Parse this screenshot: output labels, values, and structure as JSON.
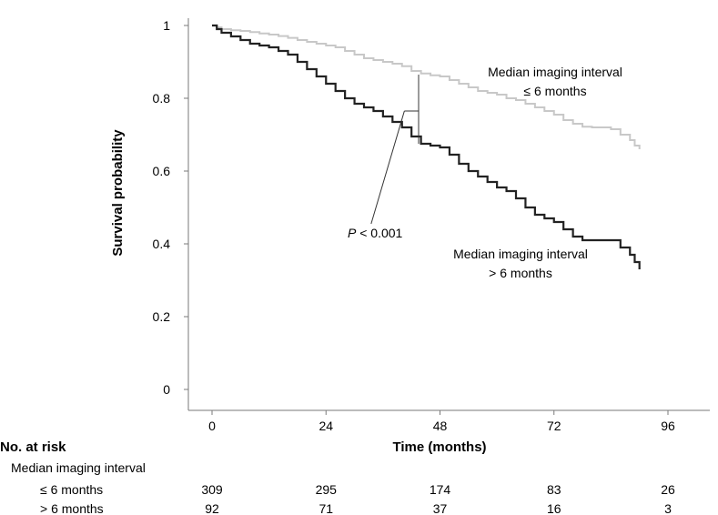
{
  "chart_data": {
    "type": "line",
    "subtype": "kaplan-meier",
    "title": "",
    "xlabel": "Time (months)",
    "ylabel": "Survival probability",
    "xlim": [
      -4,
      105
    ],
    "ylim": [
      0,
      1
    ],
    "x_ticks": [
      0,
      24,
      48,
      72,
      96
    ],
    "y_ticks": [
      0,
      0.2,
      0.4,
      0.6,
      0.8,
      1
    ],
    "y_tick_labels": [
      "0",
      "0.2",
      "0.4",
      "0.6",
      "0.8",
      "1"
    ],
    "grid": false,
    "series": [
      {
        "name": "Median imaging interval ≤ 6 months",
        "label_lines": [
          "Median imaging interval",
          "≤ 6 months"
        ],
        "color": "#c8c8c8",
        "steps": [
          [
            0,
            1.0
          ],
          [
            1,
            0.995
          ],
          [
            2,
            0.99
          ],
          [
            4,
            0.987
          ],
          [
            6,
            0.985
          ],
          [
            8,
            0.982
          ],
          [
            10,
            0.978
          ],
          [
            12,
            0.975
          ],
          [
            14,
            0.971
          ],
          [
            16,
            0.966
          ],
          [
            18,
            0.96
          ],
          [
            20,
            0.955
          ],
          [
            22,
            0.95
          ],
          [
            24,
            0.945
          ],
          [
            26,
            0.94
          ],
          [
            28,
            0.93
          ],
          [
            30,
            0.92
          ],
          [
            32,
            0.91
          ],
          [
            34,
            0.905
          ],
          [
            36,
            0.9
          ],
          [
            38,
            0.895
          ],
          [
            40,
            0.888
          ],
          [
            42,
            0.875
          ],
          [
            44,
            0.868
          ],
          [
            46,
            0.863
          ],
          [
            48,
            0.86
          ],
          [
            50,
            0.85
          ],
          [
            52,
            0.84
          ],
          [
            54,
            0.83
          ],
          [
            56,
            0.82
          ],
          [
            58,
            0.815
          ],
          [
            60,
            0.81
          ],
          [
            62,
            0.8
          ],
          [
            64,
            0.795
          ],
          [
            66,
            0.785
          ],
          [
            68,
            0.775
          ],
          [
            70,
            0.765
          ],
          [
            72,
            0.755
          ],
          [
            74,
            0.74
          ],
          [
            76,
            0.73
          ],
          [
            78,
            0.722
          ],
          [
            80,
            0.72
          ],
          [
            82,
            0.72
          ],
          [
            84,
            0.715
          ],
          [
            86,
            0.7
          ],
          [
            88,
            0.685
          ],
          [
            89,
            0.67
          ],
          [
            90,
            0.66
          ]
        ]
      },
      {
        "name": "Median imaging interval > 6 months",
        "label_lines": [
          "Median imaging interval",
          "> 6 months"
        ],
        "color": "#222222",
        "steps": [
          [
            0,
            1.0
          ],
          [
            1,
            0.99
          ],
          [
            2,
            0.98
          ],
          [
            4,
            0.97
          ],
          [
            6,
            0.96
          ],
          [
            8,
            0.95
          ],
          [
            10,
            0.945
          ],
          [
            12,
            0.94
          ],
          [
            14,
            0.93
          ],
          [
            16,
            0.92
          ],
          [
            18,
            0.9
          ],
          [
            20,
            0.88
          ],
          [
            22,
            0.86
          ],
          [
            24,
            0.84
          ],
          [
            26,
            0.82
          ],
          [
            28,
            0.8
          ],
          [
            30,
            0.785
          ],
          [
            32,
            0.775
          ],
          [
            34,
            0.765
          ],
          [
            36,
            0.75
          ],
          [
            38,
            0.735
          ],
          [
            40,
            0.72
          ],
          [
            42,
            0.695
          ],
          [
            44,
            0.675
          ],
          [
            46,
            0.67
          ],
          [
            48,
            0.665
          ],
          [
            50,
            0.645
          ],
          [
            52,
            0.62
          ],
          [
            54,
            0.6
          ],
          [
            56,
            0.585
          ],
          [
            58,
            0.57
          ],
          [
            60,
            0.555
          ],
          [
            62,
            0.545
          ],
          [
            64,
            0.525
          ],
          [
            66,
            0.5
          ],
          [
            68,
            0.48
          ],
          [
            70,
            0.47
          ],
          [
            72,
            0.46
          ],
          [
            74,
            0.44
          ],
          [
            76,
            0.42
          ],
          [
            78,
            0.41
          ],
          [
            80,
            0.41
          ],
          [
            82,
            0.41
          ],
          [
            84,
            0.41
          ],
          [
            86,
            0.39
          ],
          [
            88,
            0.37
          ],
          [
            89,
            0.35
          ],
          [
            90,
            0.33
          ]
        ]
      }
    ],
    "annotation": {
      "p_symbol": "P",
      "p_rest": " < 0.001",
      "bracket_x": 43.5,
      "bracket_y_top": 0.865,
      "bracket_y_bottom": 0.675,
      "bracket_mid_y": 0.765,
      "elbow_x": 40.5,
      "leader_end_x": 33.5,
      "leader_end_y": 0.455
    },
    "risk_table": {
      "title": "No. at risk",
      "subtitle": "Median imaging interval",
      "time_points": [
        0,
        24,
        48,
        72,
        96
      ],
      "rows": [
        {
          "label": "≤ 6 months",
          "values": [
            "309",
            "295",
            "174",
            "83",
            "26"
          ]
        },
        {
          "label": "> 6 months",
          "values": [
            "92",
            "71",
            "37",
            "16",
            "3"
          ]
        }
      ]
    }
  }
}
